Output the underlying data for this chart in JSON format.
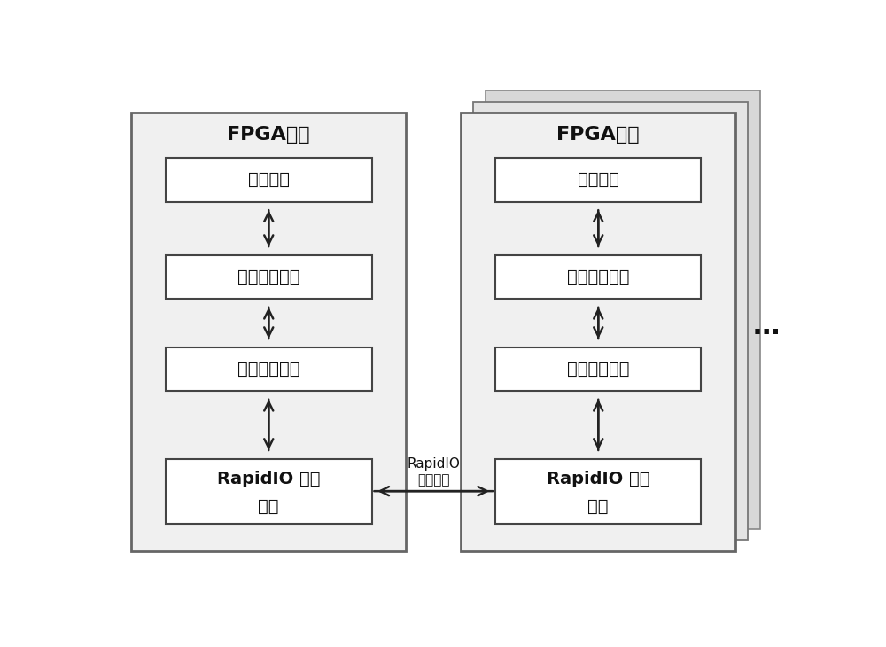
{
  "fig_bg": "#ffffff",
  "box_fill": "#ffffff",
  "box_edge": "#444444",
  "outer_box_fill": "#f0f0f0",
  "outer_box_edge": "#666666",
  "shadow1_fill": "#e8e8e8",
  "shadow2_fill": "#e0e0e0",
  "text_color": "#111111",
  "arrow_color": "#222222",
  "fpga_title": "FPGA系统",
  "block0": "应用组件",
  "block1": "主题管理模块",
  "block2": "网络操作模块",
  "block3_line1": "RapidIO 通信",
  "block3_line2": "模块",
  "rapidio_label_line1": "RapidIO",
  "rapidio_label_line2": "通信链路",
  "dots_label": "…",
  "font_size_title": 16,
  "font_size_block": 14,
  "font_size_label": 11,
  "font_size_dots": 22
}
